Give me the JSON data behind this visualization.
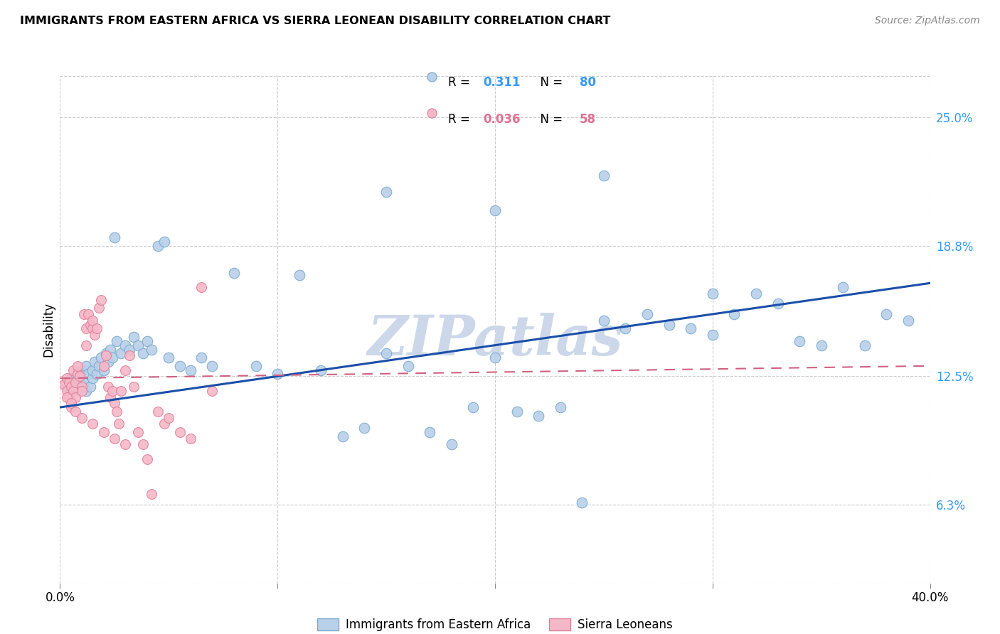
{
  "title": "IMMIGRANTS FROM EASTERN AFRICA VS SIERRA LEONEAN DISABILITY CORRELATION CHART",
  "source": "Source: ZipAtlas.com",
  "ylabel": "Disability",
  "y_ticks": [
    0.063,
    0.125,
    0.188,
    0.25
  ],
  "y_tick_labels": [
    "6.3%",
    "12.5%",
    "18.8%",
    "25.0%"
  ],
  "blue_R": "0.311",
  "blue_N": "80",
  "pink_R": "0.036",
  "pink_N": "58",
  "blue_color": "#b8d0e8",
  "blue_edge": "#7aaad0",
  "pink_color": "#f5b8c8",
  "pink_edge": "#e08098",
  "blue_line_color": "#1a4faa",
  "pink_line_color": "#d06080",
  "watermark": "ZIPatlas",
  "watermark_color": "#ccd8ea",
  "legend_blue_N_color": "#3399ff",
  "legend_pink_N_color": "#e07090",
  "blue_scatter_x": [
    0.003,
    0.004,
    0.005,
    0.005,
    0.006,
    0.007,
    0.008,
    0.008,
    0.009,
    0.01,
    0.01,
    0.011,
    0.012,
    0.012,
    0.013,
    0.014,
    0.015,
    0.015,
    0.016,
    0.017,
    0.018,
    0.019,
    0.02,
    0.021,
    0.022,
    0.023,
    0.024,
    0.025,
    0.026,
    0.028,
    0.03,
    0.032,
    0.034,
    0.036,
    0.038,
    0.04,
    0.042,
    0.045,
    0.048,
    0.05,
    0.055,
    0.06,
    0.065,
    0.07,
    0.08,
    0.09,
    0.1,
    0.11,
    0.12,
    0.13,
    0.14,
    0.15,
    0.16,
    0.17,
    0.18,
    0.19,
    0.2,
    0.21,
    0.22,
    0.23,
    0.24,
    0.25,
    0.26,
    0.27,
    0.28,
    0.29,
    0.3,
    0.31,
    0.32,
    0.33,
    0.34,
    0.35,
    0.36,
    0.37,
    0.38,
    0.39,
    0.15,
    0.2,
    0.25,
    0.3
  ],
  "blue_scatter_y": [
    0.121,
    0.119,
    0.118,
    0.124,
    0.122,
    0.12,
    0.127,
    0.119,
    0.125,
    0.121,
    0.128,
    0.122,
    0.13,
    0.118,
    0.126,
    0.12,
    0.124,
    0.128,
    0.132,
    0.126,
    0.13,
    0.134,
    0.128,
    0.136,
    0.132,
    0.138,
    0.134,
    0.192,
    0.142,
    0.136,
    0.14,
    0.138,
    0.144,
    0.14,
    0.136,
    0.142,
    0.138,
    0.188,
    0.19,
    0.134,
    0.13,
    0.128,
    0.134,
    0.13,
    0.175,
    0.13,
    0.126,
    0.174,
    0.128,
    0.096,
    0.1,
    0.136,
    0.13,
    0.098,
    0.092,
    0.11,
    0.134,
    0.108,
    0.106,
    0.11,
    0.064,
    0.152,
    0.148,
    0.155,
    0.15,
    0.148,
    0.145,
    0.155,
    0.165,
    0.16,
    0.142,
    0.14,
    0.168,
    0.14,
    0.155,
    0.152,
    0.214,
    0.205,
    0.222,
    0.165
  ],
  "pink_scatter_x": [
    0.002,
    0.003,
    0.003,
    0.004,
    0.004,
    0.005,
    0.005,
    0.006,
    0.006,
    0.007,
    0.007,
    0.008,
    0.008,
    0.009,
    0.01,
    0.01,
    0.011,
    0.012,
    0.012,
    0.013,
    0.014,
    0.015,
    0.015,
    0.016,
    0.017,
    0.018,
    0.019,
    0.02,
    0.021,
    0.022,
    0.023,
    0.024,
    0.025,
    0.026,
    0.027,
    0.028,
    0.03,
    0.032,
    0.034,
    0.036,
    0.038,
    0.04,
    0.042,
    0.045,
    0.048,
    0.05,
    0.055,
    0.06,
    0.065,
    0.07,
    0.003,
    0.005,
    0.007,
    0.01,
    0.015,
    0.02,
    0.025,
    0.03
  ],
  "pink_scatter_y": [
    0.121,
    0.118,
    0.124,
    0.115,
    0.122,
    0.11,
    0.12,
    0.118,
    0.128,
    0.122,
    0.115,
    0.126,
    0.13,
    0.125,
    0.12,
    0.118,
    0.155,
    0.148,
    0.14,
    0.155,
    0.15,
    0.148,
    0.152,
    0.145,
    0.148,
    0.158,
    0.162,
    0.13,
    0.135,
    0.12,
    0.115,
    0.118,
    0.112,
    0.108,
    0.102,
    0.118,
    0.128,
    0.135,
    0.12,
    0.098,
    0.092,
    0.085,
    0.068,
    0.108,
    0.102,
    0.105,
    0.098,
    0.095,
    0.168,
    0.118,
    0.115,
    0.112,
    0.108,
    0.105,
    0.102,
    0.098,
    0.095,
    0.092
  ]
}
